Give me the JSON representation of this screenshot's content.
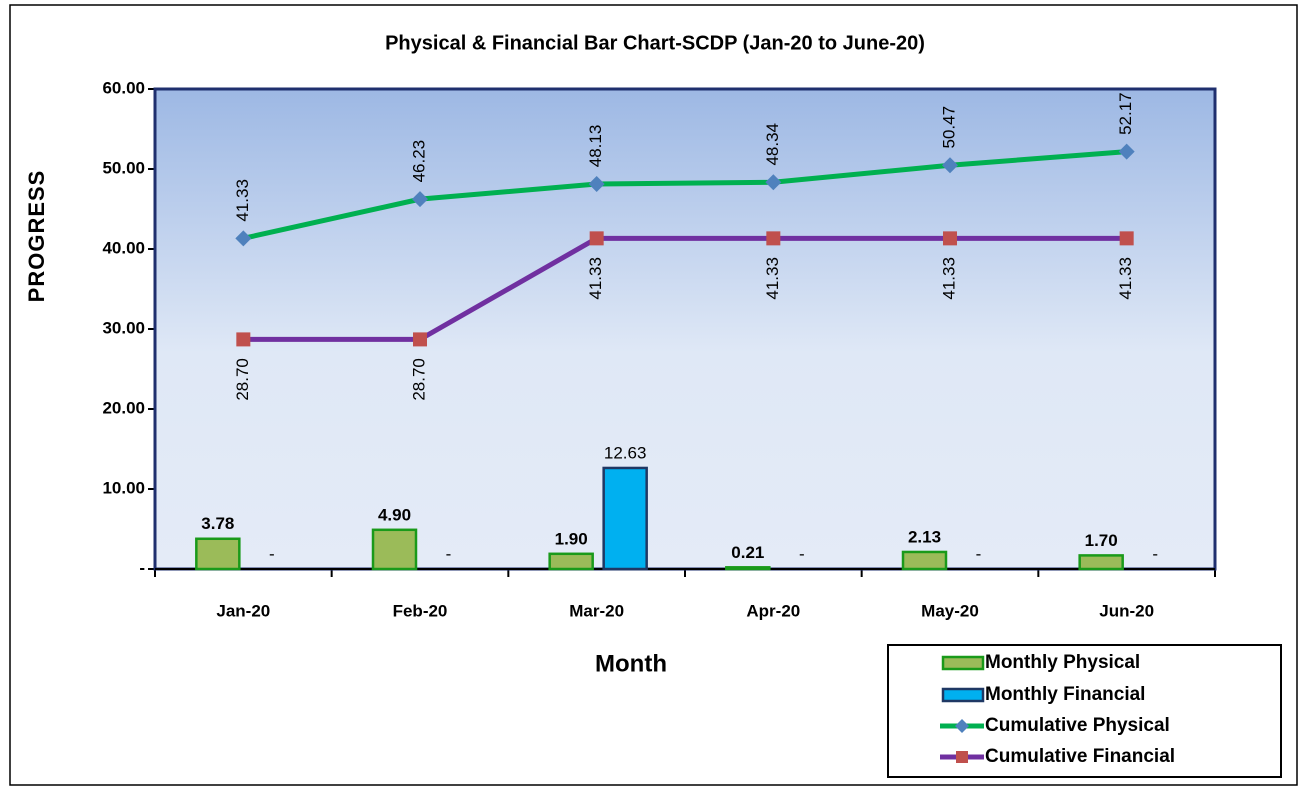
{
  "chart_data": {
    "type": "bar_line",
    "title": "Physical & Financial Bar Chart-SCDP (Jan-20 to June-20)",
    "y_label": "PROGRESS",
    "x_label": "Month",
    "categories": [
      "Jan-20",
      "Feb-20",
      "Mar-20",
      "Apr-20",
      "May-20",
      "Jun-20"
    ],
    "series": [
      {
        "name": "Monthly Physical",
        "kind": "bar",
        "color": "#9bbb59",
        "edge_color": "#1a9a1a",
        "values": [
          3.78,
          4.9,
          1.9,
          0.21,
          2.13,
          1.7
        ],
        "value_labels": [
          "3.78",
          "4.90",
          "1.90",
          "0.21",
          "2.13",
          "1.70"
        ]
      },
      {
        "name": "Monthly Financial",
        "kind": "bar",
        "color": "#00b0f0",
        "edge_color": "#1f3864",
        "values": [
          0,
          0,
          12.63,
          0,
          0,
          0
        ],
        "value_labels": [
          "-",
          "-",
          "12.63",
          "-",
          "-",
          "-"
        ]
      },
      {
        "name": "Cumulative Physical",
        "kind": "line",
        "color": "#00b050",
        "marker": "diamond",
        "marker_color": "#4f81bd",
        "values": [
          41.33,
          46.23,
          48.13,
          48.34,
          50.47,
          52.17
        ],
        "value_labels": [
          "41.33",
          "46.23",
          "48.13",
          "48.34",
          "50.47",
          "52.17"
        ]
      },
      {
        "name": "Cumulative Financial",
        "kind": "line",
        "color": "#7030a0",
        "marker": "square",
        "marker_color": "#c0504d",
        "values": [
          28.7,
          28.7,
          41.33,
          41.33,
          41.33,
          41.33
        ],
        "value_labels": [
          "28.70",
          "28.70",
          "41.33",
          "41.33",
          "41.33",
          "41.33"
        ]
      }
    ],
    "ylim": [
      0,
      60
    ],
    "yticks": [
      {
        "value": 0,
        "label": "-"
      },
      {
        "value": 10,
        "label": "10.00"
      },
      {
        "value": 20,
        "label": "20.00"
      },
      {
        "value": 30,
        "label": "30.00"
      },
      {
        "value": 40,
        "label": "40.00"
      },
      {
        "value": 50,
        "label": "50.00"
      },
      {
        "value": 60,
        "label": "60.00"
      }
    ],
    "grid": true
  }
}
